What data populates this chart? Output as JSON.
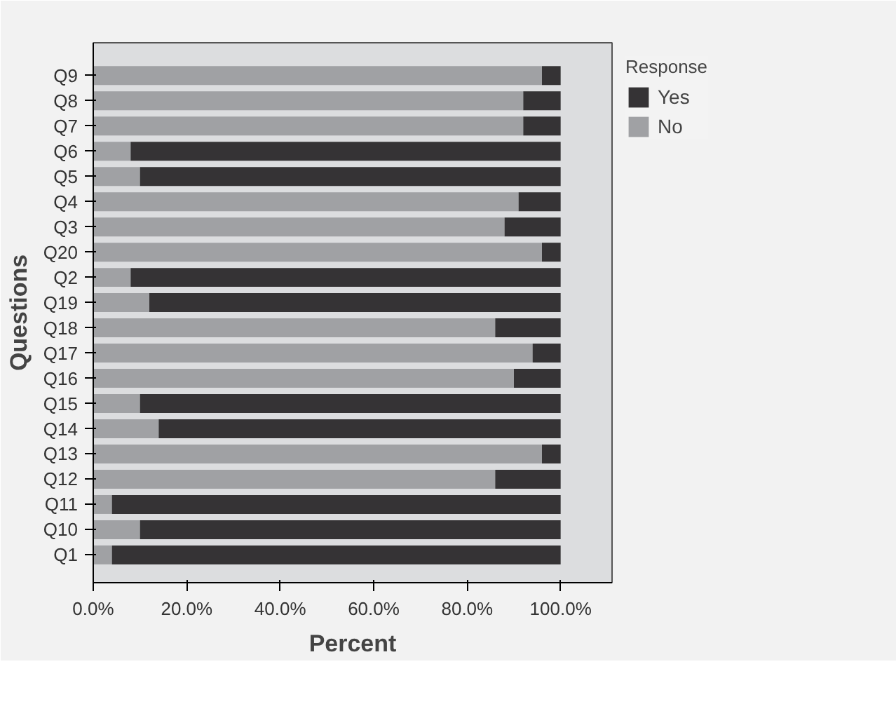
{
  "chart_data": {
    "type": "bar",
    "orientation": "horizontal",
    "stacked": true,
    "xlabel": "Percent",
    "ylabel": "Questions",
    "legend_title": "Response",
    "legend": "right",
    "grid": false,
    "categories": [
      "Q9",
      "Q8",
      "Q7",
      "Q6",
      "Q5",
      "Q4",
      "Q3",
      "Q20",
      "Q2",
      "Q19",
      "Q18",
      "Q17",
      "Q16",
      "Q15",
      "Q14",
      "Q13",
      "Q12",
      "Q11",
      "Q10",
      "Q1"
    ],
    "series": [
      {
        "name": "No",
        "color": "#a0a1a4",
        "values": [
          96,
          92,
          92,
          8,
          10,
          91,
          88,
          96,
          8,
          12,
          86,
          94,
          90,
          10,
          14,
          96,
          86,
          4,
          10,
          4
        ]
      },
      {
        "name": "Yes",
        "color": "#353335",
        "values": [
          4,
          8,
          8,
          92,
          90,
          9,
          12,
          4,
          92,
          88,
          14,
          6,
          10,
          90,
          86,
          4,
          14,
          96,
          90,
          96
        ]
      }
    ],
    "xlim": [
      0,
      111
    ],
    "xticks": [
      {
        "value": 0,
        "label": "0.0%"
      },
      {
        "value": 20,
        "label": "20.0%"
      },
      {
        "value": 40,
        "label": "40.0%"
      },
      {
        "value": 60,
        "label": "60.0%"
      },
      {
        "value": 80,
        "label": "80.0%"
      },
      {
        "value": 100,
        "label": "100.0%"
      }
    ]
  }
}
